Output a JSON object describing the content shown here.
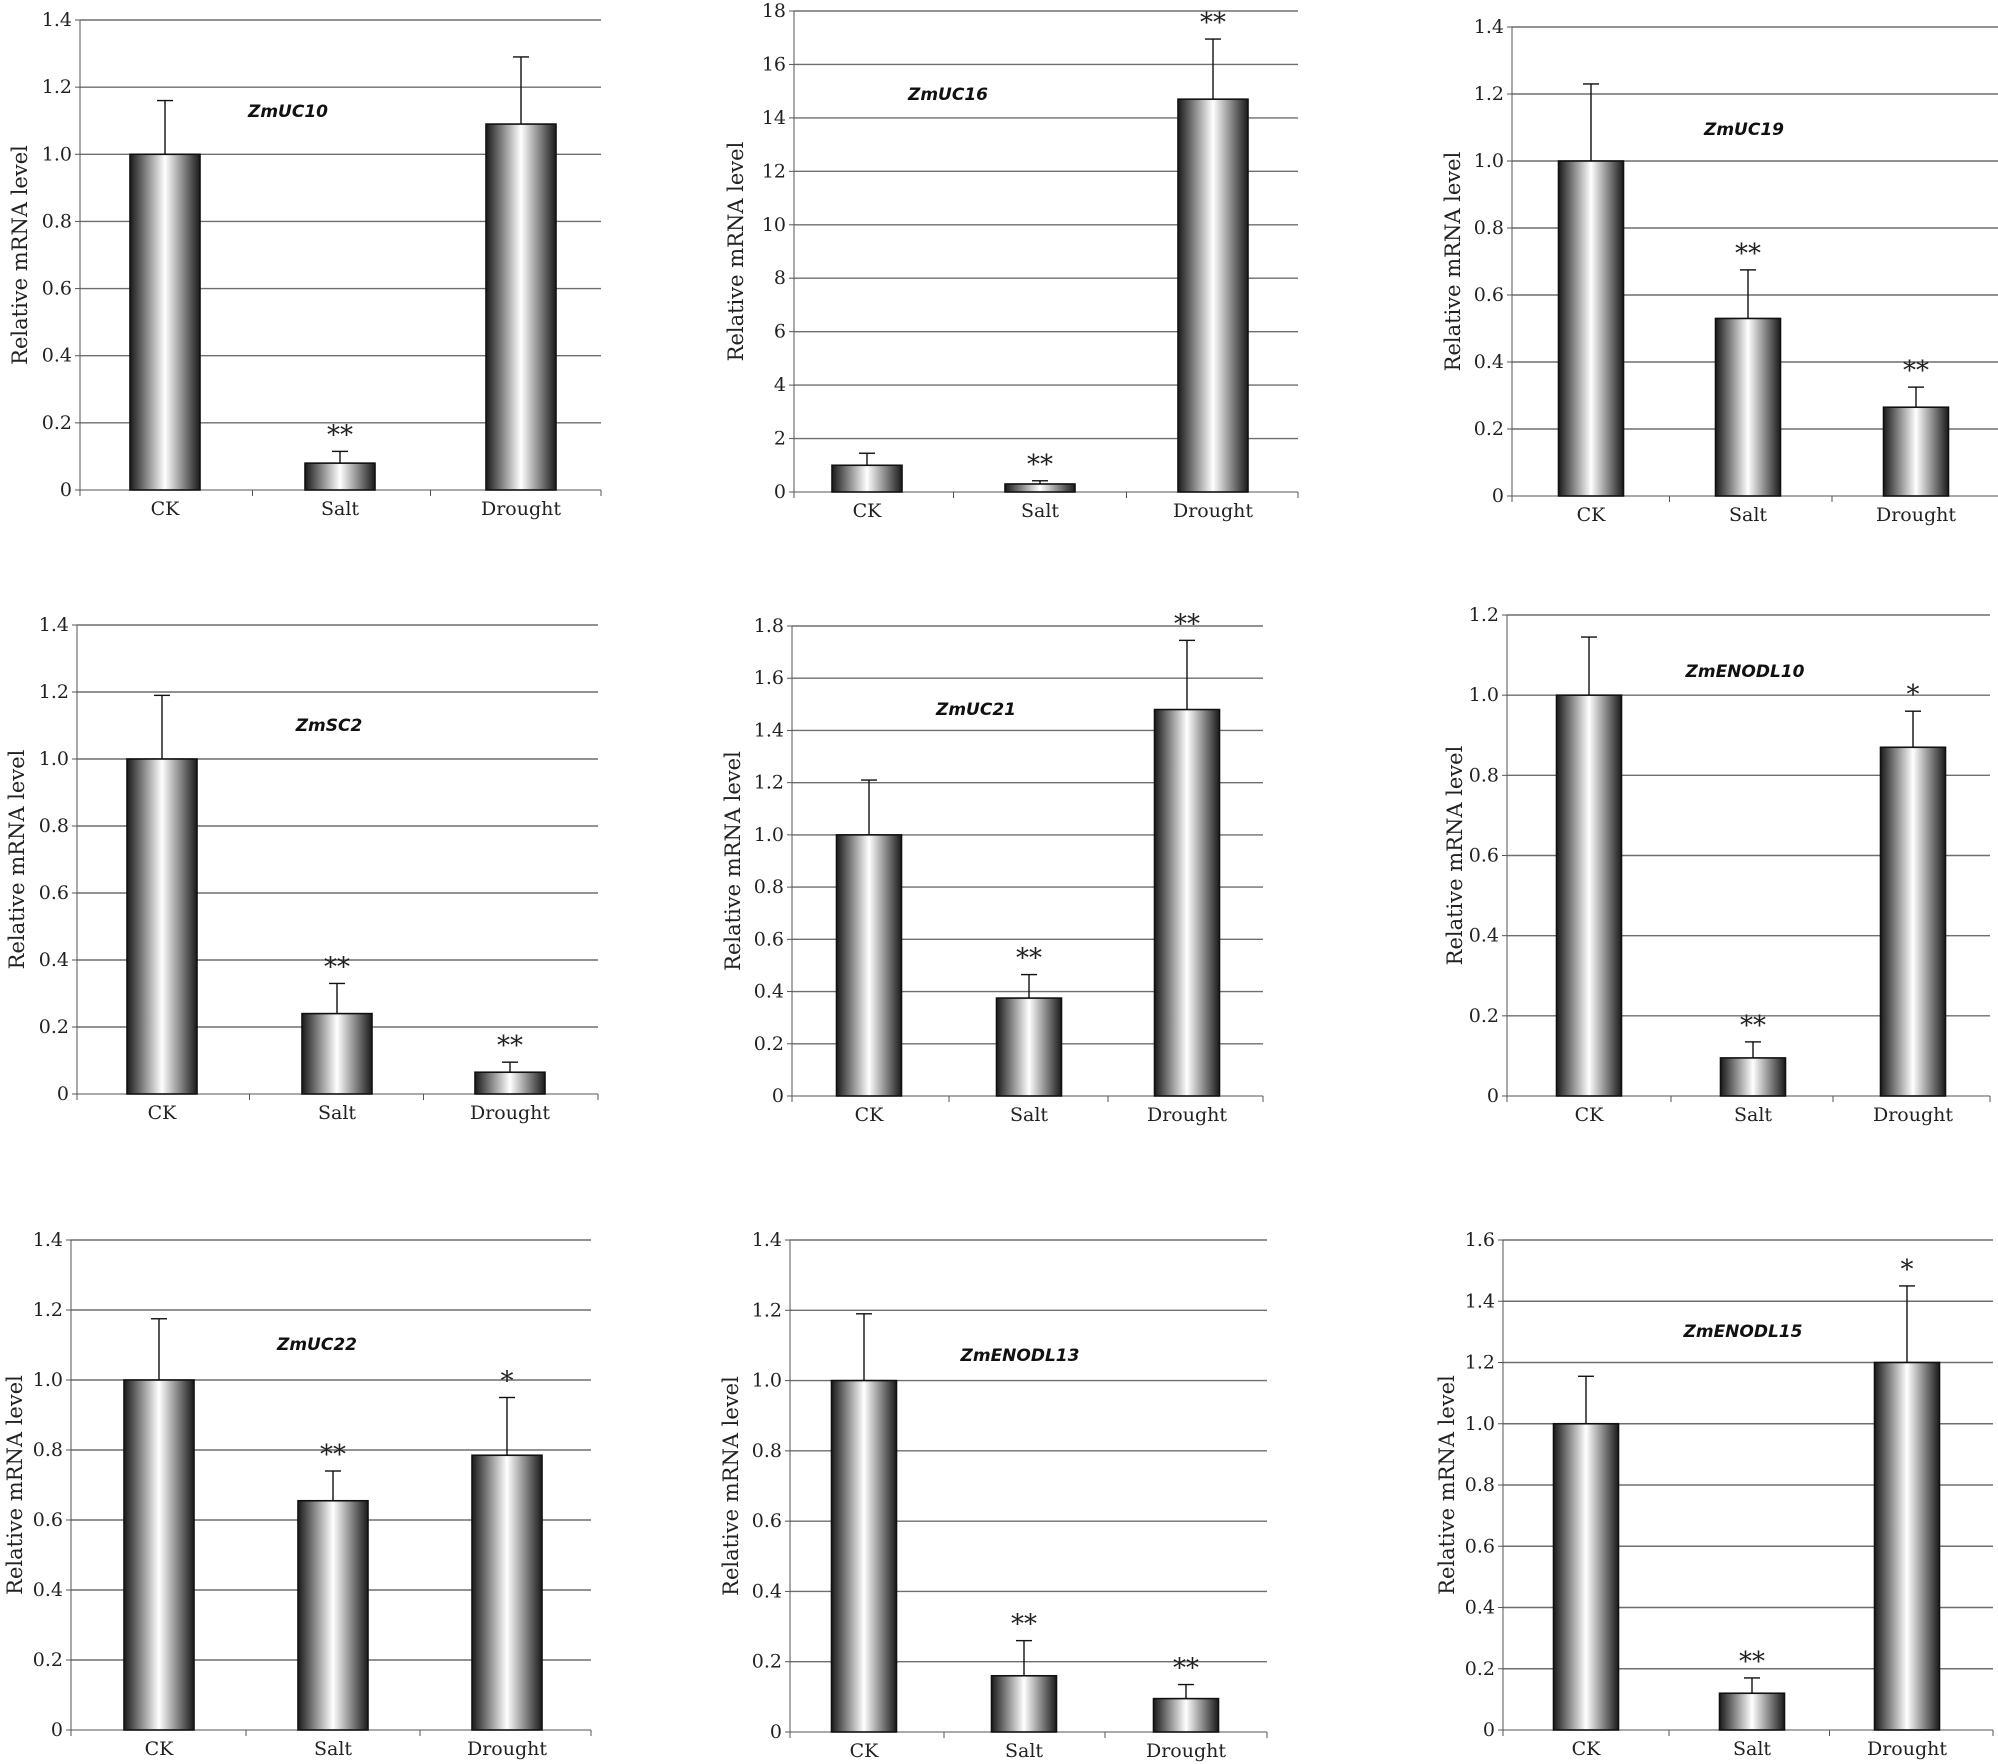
{
  "chart_data": [
    {
      "type": "bar",
      "title": "ZmUC10",
      "ylabel": "Relative mRNA level",
      "categories": [
        "CK",
        "Salt",
        "Drought"
      ],
      "values": [
        1.0,
        0.08,
        1.09
      ],
      "errors": [
        0.16,
        0.035,
        0.2
      ],
      "significance": [
        "",
        "**",
        ""
      ],
      "ylim": [
        0,
        1.4
      ],
      "yticks": [
        "0",
        "0.2",
        "0.4",
        "0.6",
        "0.8",
        "1.0",
        "1.2",
        "1.4"
      ],
      "grid": true
    },
    {
      "type": "bar",
      "title": "ZmUC16",
      "ylabel": "Relative mRNA level",
      "categories": [
        "CK",
        "Salt",
        "Drought"
      ],
      "values": [
        1.0,
        0.3,
        14.7
      ],
      "errors": [
        0.45,
        0.12,
        2.25
      ],
      "significance": [
        "",
        "**",
        "**"
      ],
      "ylim": [
        0,
        18
      ],
      "yticks": [
        "0",
        "2",
        "4",
        "6",
        "8",
        "10",
        "12",
        "14",
        "16",
        "18"
      ],
      "grid": true
    },
    {
      "type": "bar",
      "title": "ZmUC19",
      "ylabel": "Relative mRNA level",
      "categories": [
        "CK",
        "Salt",
        "Drought"
      ],
      "values": [
        1.0,
        0.53,
        0.265
      ],
      "errors": [
        0.23,
        0.145,
        0.06
      ],
      "significance": [
        "",
        "**",
        "**"
      ],
      "ylim": [
        0,
        1.4
      ],
      "yticks": [
        "0",
        "0.2",
        "0.4",
        "0.6",
        "0.8",
        "1.0",
        "1.2",
        "1.4"
      ],
      "grid": true
    },
    {
      "type": "bar",
      "title": "ZmSC2",
      "ylabel": "Relative mRNA level",
      "categories": [
        "CK",
        "Salt",
        "Drought"
      ],
      "values": [
        1.0,
        0.24,
        0.065
      ],
      "errors": [
        0.19,
        0.09,
        0.03
      ],
      "significance": [
        "",
        "**",
        "**"
      ],
      "ylim": [
        0,
        1.4
      ],
      "yticks": [
        "0",
        "0.2",
        "0.4",
        "0.6",
        "0.8",
        "1.0",
        "1.2",
        "1.4"
      ],
      "grid": true
    },
    {
      "type": "bar",
      "title": "ZmUC21",
      "ylabel": "Relative mRNA level",
      "categories": [
        "CK",
        "Salt",
        "Drought"
      ],
      "values": [
        1.0,
        0.375,
        1.48
      ],
      "errors": [
        0.21,
        0.09,
        0.265
      ],
      "significance": [
        "",
        "**",
        "**"
      ],
      "ylim": [
        0,
        1.8
      ],
      "yticks": [
        "0",
        "0.2",
        "0.4",
        "0.6",
        "0.8",
        "1.0",
        "1.2",
        "1.4",
        "1.6",
        "1.8"
      ],
      "grid": true
    },
    {
      "type": "bar",
      "title": "ZmENODL10",
      "ylabel": "Relative mRNA level",
      "categories": [
        "CK",
        "Salt",
        "Drought"
      ],
      "values": [
        1.0,
        0.095,
        0.87
      ],
      "errors": [
        0.145,
        0.04,
        0.09
      ],
      "significance": [
        "",
        "**",
        "*"
      ],
      "ylim": [
        0,
        1.2
      ],
      "yticks": [
        "0",
        "0.2",
        "0.4",
        "0.6",
        "0.8",
        "1.0",
        "1.2"
      ],
      "grid": true
    },
    {
      "type": "bar",
      "title": "ZmUC22",
      "ylabel": "Relative mRNA level",
      "categories": [
        "CK",
        "Salt",
        "Drought"
      ],
      "values": [
        1.0,
        0.655,
        0.785
      ],
      "errors": [
        0.175,
        0.085,
        0.165
      ],
      "significance": [
        "",
        "**",
        "*"
      ],
      "ylim": [
        0,
        1.4
      ],
      "yticks": [
        "0",
        "0.2",
        "0.4",
        "0.6",
        "0.8",
        "1.0",
        "1.2",
        "1.4"
      ],
      "grid": true
    },
    {
      "type": "bar",
      "title": "ZmENODL13",
      "ylabel": "Relative mRNA level",
      "categories": [
        "CK",
        "Salt",
        "Drought"
      ],
      "values": [
        1.0,
        0.16,
        0.095
      ],
      "errors": [
        0.19,
        0.1,
        0.04
      ],
      "significance": [
        "",
        "**",
        "**"
      ],
      "ylim": [
        0,
        1.4
      ],
      "yticks": [
        "0",
        "0.2",
        "0.4",
        "0.6",
        "0.8",
        "1.0",
        "1.2",
        "1.4"
      ],
      "grid": true
    },
    {
      "type": "bar",
      "title": "ZmENODL15",
      "ylabel": "Relative mRNA level",
      "categories": [
        "CK",
        "Salt",
        "Drought"
      ],
      "values": [
        1.0,
        0.12,
        1.2
      ],
      "errors": [
        0.155,
        0.05,
        0.25
      ],
      "significance": [
        "",
        "**",
        "*"
      ],
      "ylim": [
        0,
        1.6
      ],
      "yticks": [
        "0",
        "0.2",
        "0.4",
        "0.6",
        "0.8",
        "1.0",
        "1.2",
        "1.4",
        "1.6"
      ],
      "grid": true
    }
  ],
  "colors": {
    "bar_dark": "#1a1a1a",
    "bar_light": "#ffffff",
    "grid": "#6e6e6e",
    "axis": "#555555",
    "text": "#222222"
  }
}
